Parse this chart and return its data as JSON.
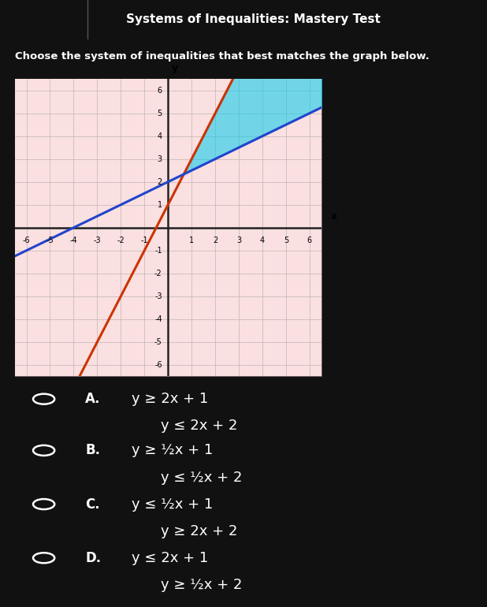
{
  "title": "Systems of Inequalities: Mastery Test",
  "question": "Choose the system of inequalities that best matches the graph below.",
  "bg_color": "#111111",
  "graph_bg": "#f8eaea",
  "xlim": [
    -6.5,
    6.5
  ],
  "ylim": [
    -6.5,
    6.5
  ],
  "x_ticks": [
    -6,
    -5,
    -4,
    -3,
    -2,
    -1,
    1,
    2,
    3,
    4,
    5,
    6
  ],
  "y_ticks": [
    -6,
    -5,
    -4,
    -3,
    -2,
    -1,
    1,
    2,
    3,
    4,
    5,
    6
  ],
  "line1_slope": 2,
  "line1_intercept": 1,
  "line1_color": "#cc3300",
  "line2_slope": 0.5,
  "line2_intercept": 2,
  "line2_color": "#2244cc",
  "cyan_color": "#00ccee",
  "cyan_alpha": 0.55,
  "pink_color": "#ffcccc",
  "pink_alpha": 0.3,
  "options": [
    {
      "label": "A.",
      "eq1": "y ≥ 2x + 1",
      "eq2": "y ≤ 2x + 2"
    },
    {
      "label": "B.",
      "eq1": "y ≥ ½x + 1",
      "eq2": "y ≤ ½x + 2"
    },
    {
      "label": "C.",
      "eq1": "y ≤ ½x + 1",
      "eq2": "y ≥ 2x + 2"
    },
    {
      "label": "D.",
      "eq1": "y ≤ 2x + 1",
      "eq2": "y ≥ ½x + 2"
    }
  ]
}
